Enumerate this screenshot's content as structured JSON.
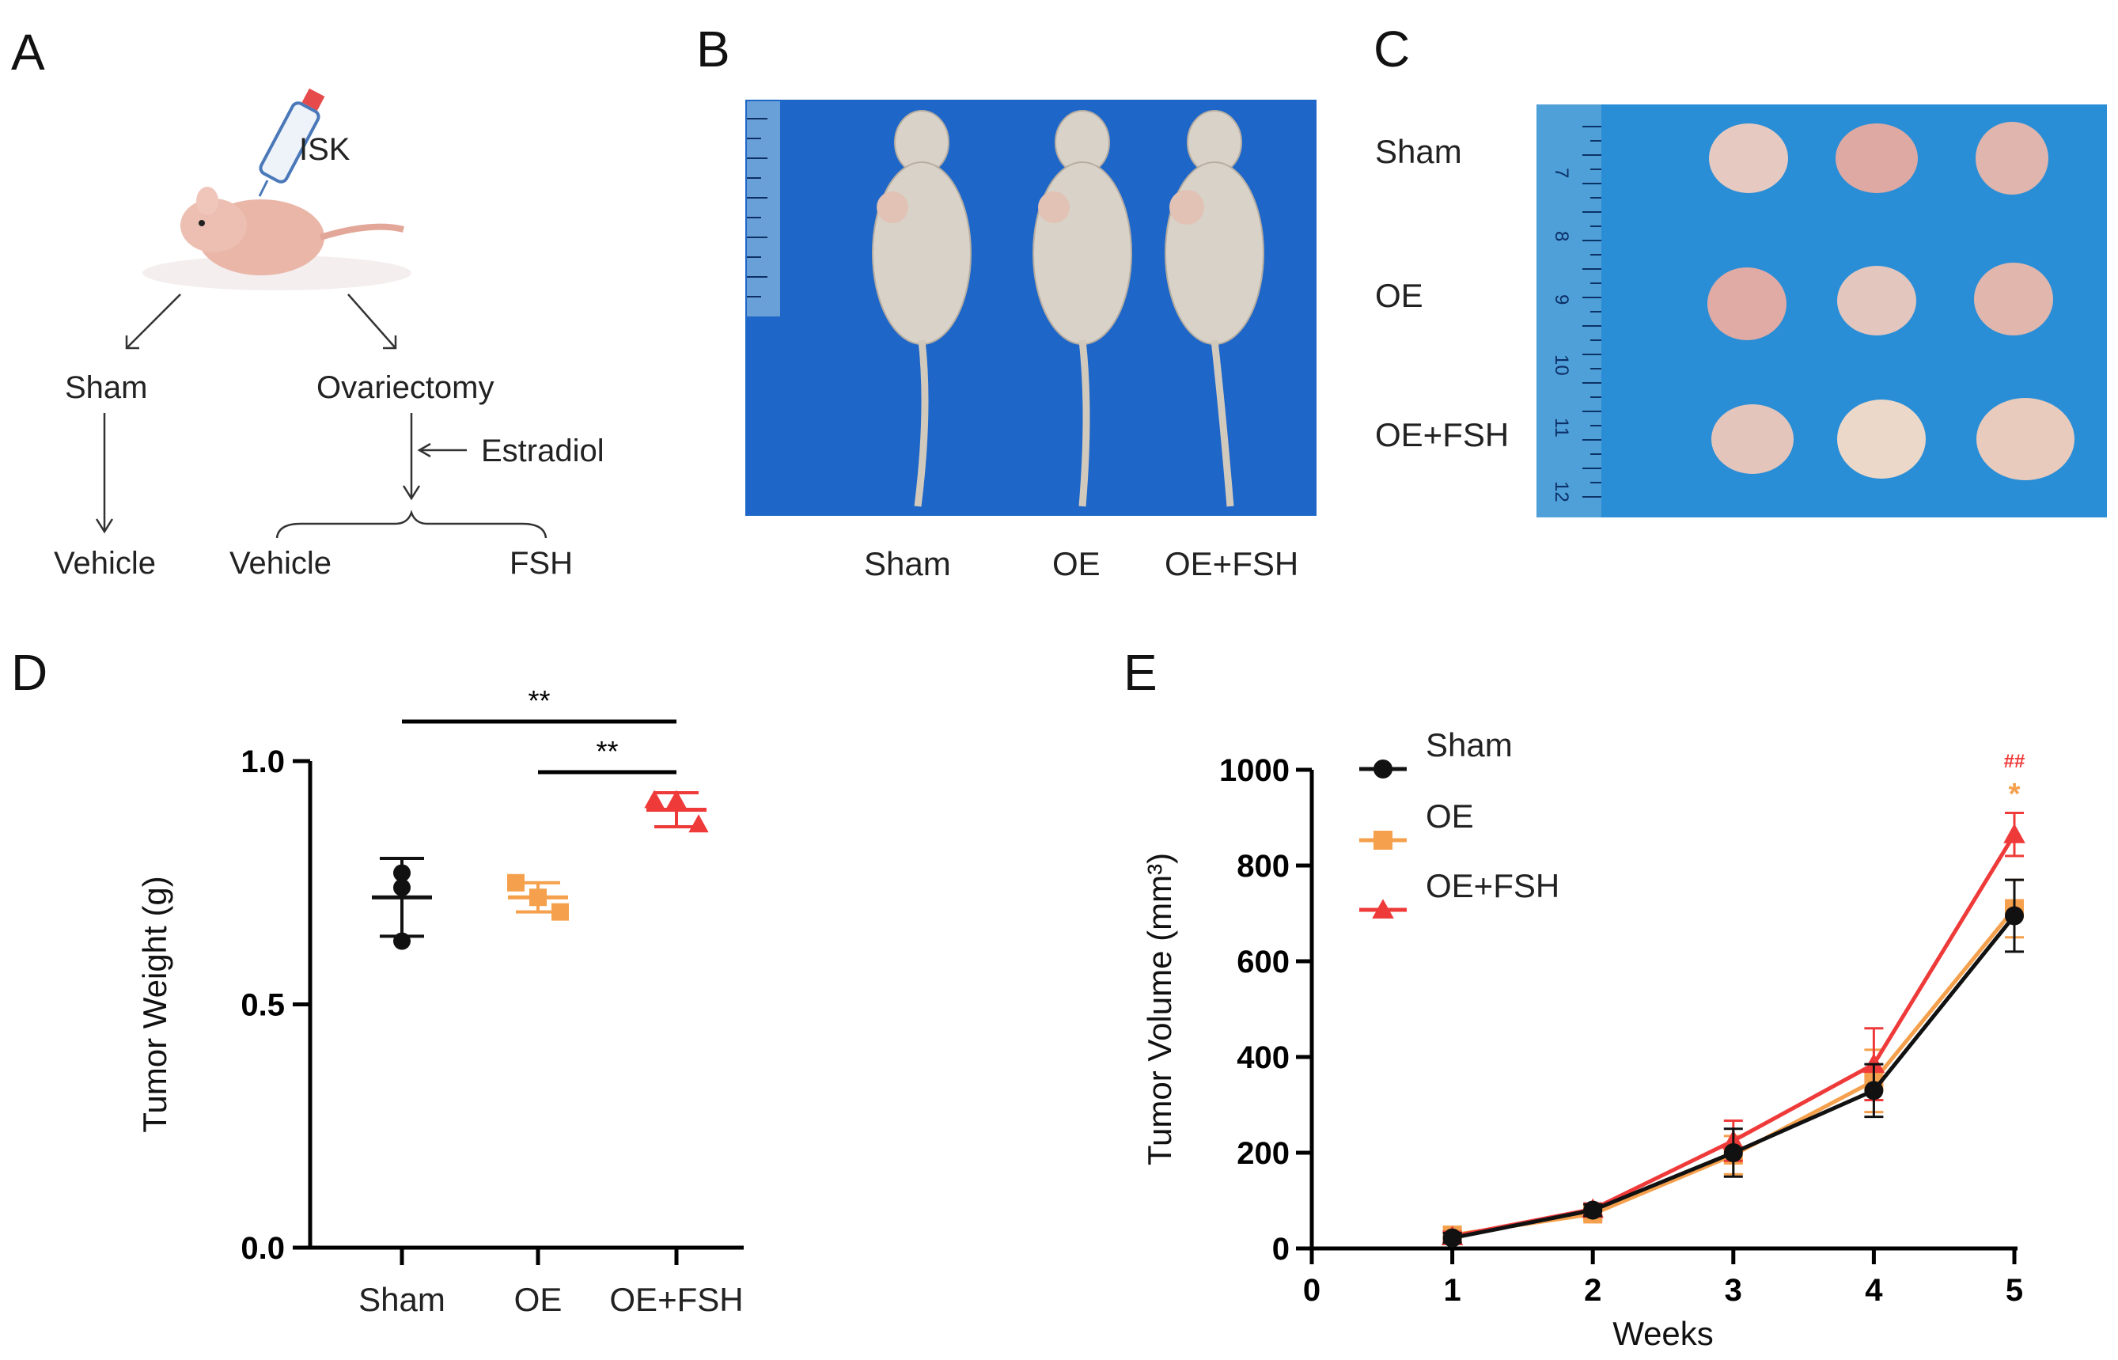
{
  "panels": {
    "A": "A",
    "B": "B",
    "C": "C",
    "D": "D",
    "E": "E"
  },
  "panel_a": {
    "injection": "ISK",
    "branch_left": "Sham",
    "branch_right": "Ovariectomy",
    "treatment": "Estradiol",
    "left_outcome": "Vehicle",
    "right_outcome_1": "Vehicle",
    "right_outcome_2": "FSH"
  },
  "panel_b": {
    "labels": [
      "Sham",
      "OE",
      "OE+FSH"
    ]
  },
  "panel_c": {
    "rows": [
      "Sham",
      "OE",
      "OE+FSH"
    ],
    "ruler_numbers": [
      "7",
      "8",
      "9",
      "10",
      "11",
      "12"
    ]
  },
  "colors": {
    "sham": "#111111",
    "oe": "#f5a04c",
    "oe_fsh": "#ef3a3a",
    "photo_bg": "#1e66c8"
  },
  "chart_data": [
    {
      "type": "scatter",
      "panel": "D",
      "ylabel": "Tumor Weight (g)",
      "ylim": [
        0,
        1.0
      ],
      "yticks": [
        "0.0",
        "0.5",
        "1.0"
      ],
      "categories": [
        "Sham",
        "OE",
        "OE+FSH"
      ],
      "series": [
        {
          "name": "Sham",
          "points": [
            0.77,
            0.74,
            0.63
          ],
          "mean": 0.72,
          "sd": 0.08,
          "marker": "circle"
        },
        {
          "name": "OE",
          "points": [
            0.75,
            0.72,
            0.69
          ],
          "mean": 0.72,
          "sd": 0.03,
          "marker": "square"
        },
        {
          "name": "OE+FSH",
          "points": [
            0.92,
            0.92,
            0.87
          ],
          "mean": 0.9,
          "sd": 0.035,
          "marker": "triangle"
        }
      ],
      "significance": [
        {
          "from": "Sham",
          "to": "OE+FSH",
          "label": "**"
        },
        {
          "from": "OE",
          "to": "OE+FSH",
          "label": "**"
        }
      ]
    },
    {
      "type": "line",
      "panel": "E",
      "xlabel": "Weeks",
      "ylabel": "Tumor Volume (mm³)",
      "xlim": [
        0,
        5
      ],
      "ylim": [
        0,
        1000
      ],
      "xticks": [
        "0",
        "1",
        "2",
        "3",
        "4",
        "5"
      ],
      "yticks": [
        "0",
        "200",
        "400",
        "600",
        "800",
        "1000"
      ],
      "x": [
        1,
        2,
        3,
        4,
        5
      ],
      "series": [
        {
          "name": "Sham",
          "values": [
            22,
            80,
            200,
            330,
            695
          ],
          "errors": [
            10,
            12,
            50,
            55,
            75
          ],
          "marker": "circle"
        },
        {
          "name": "OE",
          "values": [
            28,
            72,
            195,
            350,
            710
          ],
          "errors": [
            10,
            12,
            40,
            65,
            60
          ],
          "marker": "square"
        },
        {
          "name": "OE+FSH",
          "values": [
            25,
            82,
            225,
            385,
            865
          ],
          "errors": [
            10,
            12,
            42,
            75,
            45
          ],
          "marker": "triangle"
        }
      ],
      "annotations": [
        {
          "x": 5,
          "label": "##",
          "color": "red"
        },
        {
          "x": 5,
          "label": "*",
          "color": "orange"
        }
      ]
    }
  ]
}
